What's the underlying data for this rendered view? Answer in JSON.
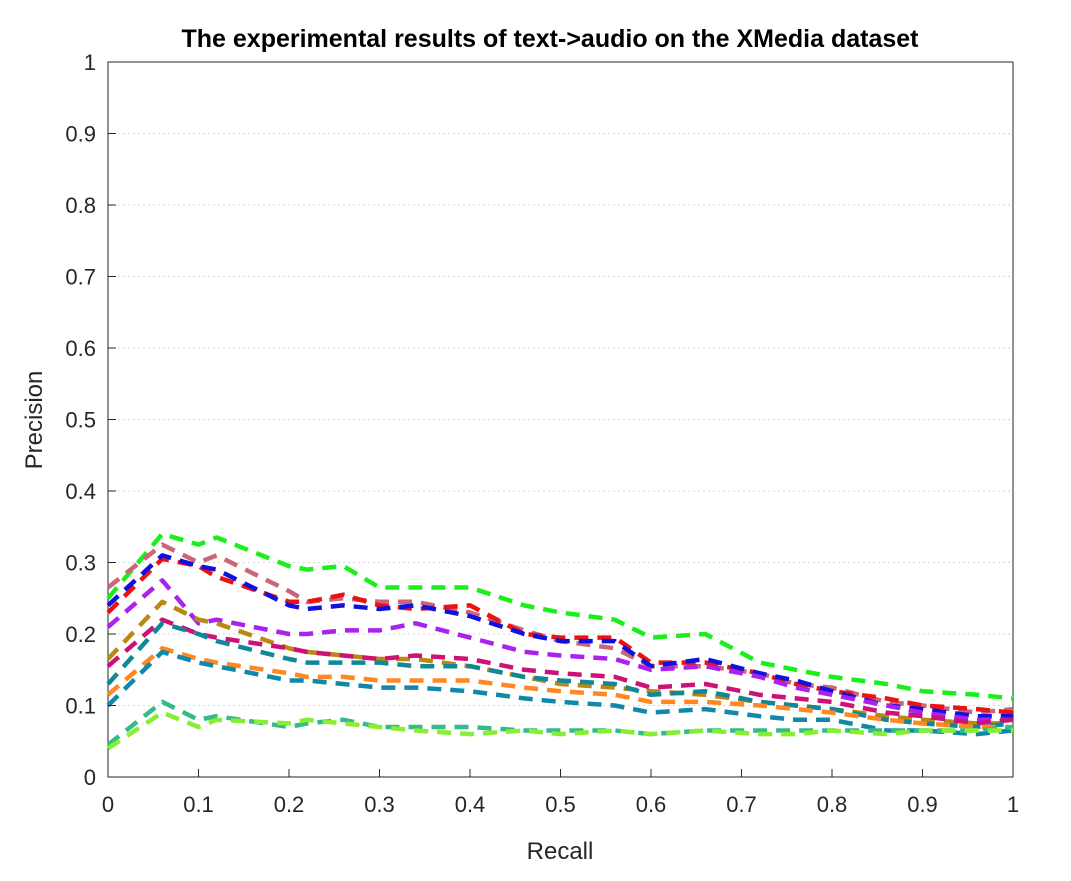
{
  "chart_data": {
    "type": "line",
    "title": "The experimental results of text->audio on the XMedia dataset",
    "xlabel": "Recall",
    "ylabel": "Precision",
    "xlim": [
      0,
      1
    ],
    "ylim": [
      0,
      1
    ],
    "xticks": [
      "0",
      "0.1",
      "0.2",
      "0.3",
      "0.4",
      "0.5",
      "0.6",
      "0.7",
      "0.8",
      "0.9",
      "1"
    ],
    "yticks": [
      "0",
      "0.1",
      "0.2",
      "0.3",
      "0.4",
      "0.5",
      "0.6",
      "0.7",
      "0.8",
      "0.9",
      "1"
    ],
    "grid": "y-dotted",
    "legend": "none",
    "x": [
      0,
      0.06,
      0.1,
      0.12,
      0.2,
      0.22,
      0.26,
      0.3,
      0.34,
      0.4,
      0.46,
      0.5,
      0.56,
      0.6,
      0.66,
      0.72,
      0.76,
      0.8,
      0.86,
      0.9,
      0.96,
      1
    ],
    "series": [
      {
        "color": "#1aef1a",
        "values": [
          0.25,
          0.34,
          0.325,
          0.335,
          0.295,
          0.29,
          0.295,
          0.265,
          0.265,
          0.265,
          0.24,
          0.23,
          0.22,
          0.195,
          0.2,
          0.16,
          0.15,
          0.14,
          0.13,
          0.12,
          0.115,
          0.11
        ]
      },
      {
        "color": "#cc6677",
        "values": [
          0.265,
          0.325,
          0.3,
          0.31,
          0.26,
          0.245,
          0.25,
          0.245,
          0.245,
          0.23,
          0.205,
          0.19,
          0.18,
          0.155,
          0.155,
          0.145,
          0.13,
          0.125,
          0.105,
          0.1,
          0.09,
          0.095
        ]
      },
      {
        "color": "#ee1111",
        "values": [
          0.23,
          0.305,
          0.295,
          0.28,
          0.245,
          0.245,
          0.255,
          0.24,
          0.235,
          0.24,
          0.2,
          0.195,
          0.195,
          0.16,
          0.16,
          0.145,
          0.13,
          0.12,
          0.11,
          0.1,
          0.095,
          0.09
        ]
      },
      {
        "color": "#1111dd",
        "values": [
          0.24,
          0.31,
          0.295,
          0.29,
          0.24,
          0.235,
          0.24,
          0.235,
          0.24,
          0.225,
          0.2,
          0.19,
          0.19,
          0.155,
          0.165,
          0.145,
          0.135,
          0.12,
          0.1,
          0.095,
          0.085,
          0.085
        ]
      },
      {
        "color": "#aa22ee",
        "values": [
          0.21,
          0.275,
          0.215,
          0.22,
          0.2,
          0.2,
          0.205,
          0.205,
          0.215,
          0.195,
          0.175,
          0.17,
          0.165,
          0.15,
          0.155,
          0.14,
          0.125,
          0.115,
          0.1,
          0.09,
          0.08,
          0.08
        ]
      },
      {
        "color": "#bb8811",
        "values": [
          0.165,
          0.245,
          0.22,
          0.215,
          0.18,
          0.175,
          0.17,
          0.165,
          0.165,
          0.155,
          0.14,
          0.13,
          0.125,
          0.12,
          0.115,
          0.105,
          0.1,
          0.095,
          0.085,
          0.08,
          0.075,
          0.075
        ]
      },
      {
        "color": "#cc1177",
        "values": [
          0.155,
          0.22,
          0.2,
          0.195,
          0.18,
          0.175,
          0.17,
          0.165,
          0.17,
          0.165,
          0.15,
          0.145,
          0.14,
          0.125,
          0.13,
          0.115,
          0.11,
          0.105,
          0.09,
          0.085,
          0.075,
          0.08
        ]
      },
      {
        "color": "#118899",
        "values": [
          0.13,
          0.215,
          0.2,
          0.19,
          0.165,
          0.16,
          0.16,
          0.16,
          0.155,
          0.155,
          0.14,
          0.135,
          0.13,
          0.115,
          0.12,
          0.105,
          0.1,
          0.095,
          0.08,
          0.075,
          0.07,
          0.075
        ]
      },
      {
        "color": "#ff8822",
        "values": [
          0.115,
          0.18,
          0.165,
          0.16,
          0.145,
          0.14,
          0.14,
          0.135,
          0.135,
          0.135,
          0.125,
          0.12,
          0.115,
          0.105,
          0.105,
          0.1,
          0.095,
          0.09,
          0.08,
          0.075,
          0.07,
          0.07
        ]
      },
      {
        "color": "#1188aa",
        "values": [
          0.1,
          0.175,
          0.16,
          0.155,
          0.135,
          0.135,
          0.13,
          0.125,
          0.125,
          0.12,
          0.11,
          0.105,
          0.1,
          0.09,
          0.095,
          0.085,
          0.08,
          0.08,
          0.065,
          0.065,
          0.06,
          0.065
        ]
      },
      {
        "color": "#33bb88",
        "values": [
          0.045,
          0.105,
          0.08,
          0.085,
          0.07,
          0.075,
          0.08,
          0.07,
          0.07,
          0.07,
          0.065,
          0.065,
          0.065,
          0.06,
          0.065,
          0.065,
          0.065,
          0.065,
          0.065,
          0.065,
          0.065,
          0.07
        ]
      },
      {
        "color": "#88ee33",
        "values": [
          0.04,
          0.09,
          0.07,
          0.08,
          0.075,
          0.08,
          0.075,
          0.07,
          0.065,
          0.06,
          0.065,
          0.06,
          0.065,
          0.06,
          0.065,
          0.06,
          0.06,
          0.065,
          0.06,
          0.065,
          0.065,
          0.065
        ]
      }
    ]
  }
}
